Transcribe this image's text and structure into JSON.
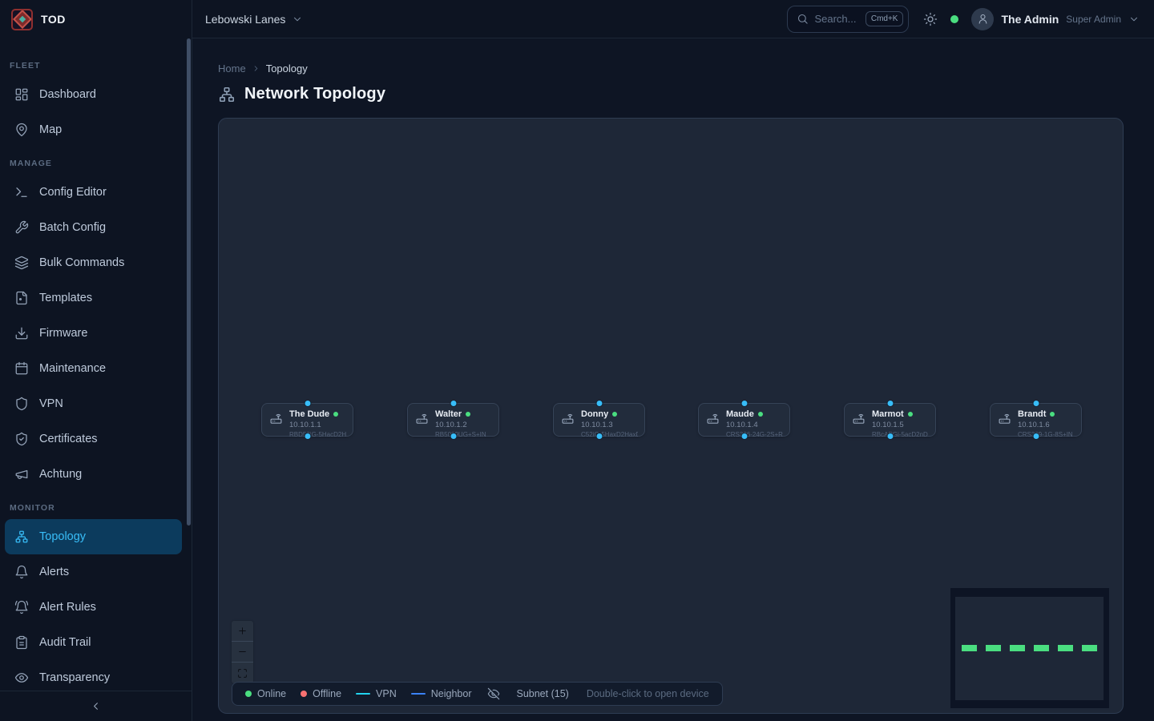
{
  "brand": {
    "name": "TOD"
  },
  "topbar": {
    "org": "Lebowski Lanes",
    "search": {
      "placeholder": "Search...",
      "shortcut": "Cmd+K"
    },
    "user": {
      "name": "The Admin",
      "role": "Super Admin"
    }
  },
  "sidebar": {
    "sections": [
      {
        "label": "FLEET",
        "items": [
          {
            "label": "Dashboard",
            "icon": "dashboard"
          },
          {
            "label": "Map",
            "icon": "map-pin"
          }
        ]
      },
      {
        "label": "MANAGE",
        "items": [
          {
            "label": "Config Editor",
            "icon": "terminal"
          },
          {
            "label": "Batch Config",
            "icon": "wrench"
          },
          {
            "label": "Bulk Commands",
            "icon": "layers"
          },
          {
            "label": "Templates",
            "icon": "file"
          },
          {
            "label": "Firmware",
            "icon": "download"
          },
          {
            "label": "Maintenance",
            "icon": "calendar"
          },
          {
            "label": "VPN",
            "icon": "shield"
          },
          {
            "label": "Certificates",
            "icon": "shield-check"
          },
          {
            "label": "Achtung",
            "icon": "megaphone"
          }
        ]
      },
      {
        "label": "MONITOR",
        "items": [
          {
            "label": "Topology",
            "icon": "topology",
            "active": true
          },
          {
            "label": "Alerts",
            "icon": "bell"
          },
          {
            "label": "Alert Rules",
            "icon": "bell-ring"
          },
          {
            "label": "Audit Trail",
            "icon": "clipboard"
          },
          {
            "label": "Transparency",
            "icon": "eye"
          }
        ]
      }
    ]
  },
  "breadcrumb": {
    "items": [
      "Home",
      "Topology"
    ]
  },
  "page": {
    "title": "Network Topology"
  },
  "canvas": {
    "nodes": [
      {
        "name": "The Dude",
        "ip": "10.10.1.1",
        "model": "RBD53iG-5HacD2HnD",
        "status": "online"
      },
      {
        "name": "Walter",
        "ip": "10.10.1.2",
        "model": "RB5009UG+S+IN",
        "status": "online"
      },
      {
        "name": "Donny",
        "ip": "10.10.1.3",
        "model": "C52iG-5HaxD2HaxD-US",
        "status": "online"
      },
      {
        "name": "Maude",
        "ip": "10.10.1.4",
        "model": "CRS326-24G-2S+RM",
        "status": "online"
      },
      {
        "name": "Marmot",
        "ip": "10.10.1.5",
        "model": "RBcAPGi-5acD2nD",
        "status": "online"
      },
      {
        "name": "Brandt",
        "ip": "10.10.1.6",
        "model": "CRS309-1G-8S+IN",
        "status": "online"
      }
    ],
    "legend": {
      "online": "Online",
      "offline": "Offline",
      "vpn": "VPN",
      "neighbor": "Neighbor",
      "subnet": "Subnet (15)",
      "hint": "Double-click to open device"
    },
    "colors": {
      "online": "#4ade80",
      "offline": "#f87171",
      "vpn": "#22d3ee",
      "neighbor": "#3b82f6",
      "handle": "#38bdf8"
    }
  }
}
